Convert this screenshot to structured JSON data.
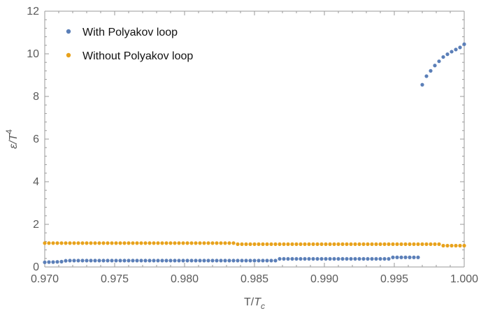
{
  "chart_data": {
    "type": "scatter",
    "title": "",
    "xlabel": "T/T_c",
    "ylabel": "ε/T^4",
    "xlim": [
      0.97,
      1.0
    ],
    "ylim": [
      0,
      12
    ],
    "xticks": [
      0.97,
      0.975,
      0.98,
      0.985,
      0.99,
      0.995,
      1.0
    ],
    "xtick_labels": [
      "0.970",
      "0.975",
      "0.980",
      "0.985",
      "0.990",
      "0.995",
      "1.000"
    ],
    "yticks": [
      0,
      2,
      4,
      6,
      8,
      10,
      12
    ],
    "ytick_labels": [
      "0",
      "2",
      "4",
      "6",
      "8",
      "10",
      "12"
    ],
    "legend_position": "top-left",
    "grid": false,
    "series": [
      {
        "name": "With Polyakov loop",
        "color": "#5b7fb8",
        "x": [
          0.97,
          0.9703,
          0.9706,
          0.9709,
          0.9712,
          0.9715,
          0.9718,
          0.9721,
          0.9724,
          0.9727,
          0.973,
          0.9733,
          0.9736,
          0.9739,
          0.9742,
          0.9745,
          0.9748,
          0.9751,
          0.9754,
          0.9757,
          0.976,
          0.9763,
          0.9766,
          0.9769,
          0.9772,
          0.9775,
          0.9778,
          0.9781,
          0.9784,
          0.9787,
          0.979,
          0.9793,
          0.9796,
          0.9799,
          0.9802,
          0.9805,
          0.9808,
          0.9811,
          0.9814,
          0.9817,
          0.982,
          0.9823,
          0.9826,
          0.9829,
          0.9832,
          0.9835,
          0.9838,
          0.9841,
          0.9844,
          0.9847,
          0.985,
          0.9853,
          0.9856,
          0.9859,
          0.9862,
          0.9865,
          0.9868,
          0.9871,
          0.9874,
          0.9877,
          0.988,
          0.9883,
          0.9886,
          0.9889,
          0.9892,
          0.9895,
          0.9898,
          0.9901,
          0.9904,
          0.9907,
          0.991,
          0.9913,
          0.9916,
          0.9919,
          0.9922,
          0.9925,
          0.9928,
          0.9931,
          0.9934,
          0.9937,
          0.994,
          0.9943,
          0.9946,
          0.9949,
          0.9952,
          0.9955,
          0.9958,
          0.9961,
          0.9964,
          0.9967,
          0.997,
          0.9973,
          0.9976,
          0.9979,
          0.9982,
          0.9985,
          0.9988,
          0.9991,
          0.9994,
          0.9997,
          1.0
        ],
        "y": [
          0.22,
          0.23,
          0.23,
          0.24,
          0.25,
          0.29,
          0.3,
          0.3,
          0.3,
          0.3,
          0.3,
          0.3,
          0.3,
          0.3,
          0.3,
          0.3,
          0.3,
          0.3,
          0.3,
          0.3,
          0.3,
          0.3,
          0.3,
          0.3,
          0.3,
          0.3,
          0.3,
          0.3,
          0.3,
          0.3,
          0.3,
          0.3,
          0.3,
          0.3,
          0.3,
          0.3,
          0.3,
          0.3,
          0.3,
          0.3,
          0.3,
          0.3,
          0.3,
          0.3,
          0.3,
          0.3,
          0.3,
          0.3,
          0.3,
          0.3,
          0.3,
          0.3,
          0.3,
          0.3,
          0.3,
          0.3,
          0.38,
          0.38,
          0.38,
          0.38,
          0.38,
          0.38,
          0.38,
          0.38,
          0.38,
          0.38,
          0.38,
          0.38,
          0.38,
          0.38,
          0.38,
          0.38,
          0.38,
          0.38,
          0.38,
          0.38,
          0.38,
          0.38,
          0.38,
          0.38,
          0.38,
          0.38,
          0.38,
          0.45,
          0.45,
          0.45,
          0.45,
          0.45,
          0.45,
          0.45,
          8.55,
          8.95,
          9.2,
          9.45,
          9.65,
          9.85,
          9.98,
          10.1,
          10.2,
          10.3,
          10.45
        ]
      },
      {
        "name": "Without Polyakov loop",
        "color": "#e8a21c",
        "x": [
          0.97,
          0.9703,
          0.9706,
          0.9709,
          0.9712,
          0.9715,
          0.9718,
          0.9721,
          0.9724,
          0.9727,
          0.973,
          0.9733,
          0.9736,
          0.9739,
          0.9742,
          0.9745,
          0.9748,
          0.9751,
          0.9754,
          0.9757,
          0.976,
          0.9763,
          0.9766,
          0.9769,
          0.9772,
          0.9775,
          0.9778,
          0.9781,
          0.9784,
          0.9787,
          0.979,
          0.9793,
          0.9796,
          0.9799,
          0.9802,
          0.9805,
          0.9808,
          0.9811,
          0.9814,
          0.9817,
          0.982,
          0.9823,
          0.9826,
          0.9829,
          0.9832,
          0.9835,
          0.9838,
          0.9841,
          0.9844,
          0.9847,
          0.985,
          0.9853,
          0.9856,
          0.9859,
          0.9862,
          0.9865,
          0.9868,
          0.9871,
          0.9874,
          0.9877,
          0.988,
          0.9883,
          0.9886,
          0.9889,
          0.9892,
          0.9895,
          0.9898,
          0.9901,
          0.9904,
          0.9907,
          0.991,
          0.9913,
          0.9916,
          0.9919,
          0.9922,
          0.9925,
          0.9928,
          0.9931,
          0.9934,
          0.9937,
          0.994,
          0.9943,
          0.9946,
          0.9949,
          0.9952,
          0.9955,
          0.9958,
          0.9961,
          0.9964,
          0.9967,
          0.997,
          0.9973,
          0.9976,
          0.9979,
          0.9982,
          0.9985,
          0.9988,
          0.9991,
          0.9994,
          0.9997,
          1.0
        ],
        "y": [
          1.12,
          1.12,
          1.12,
          1.12,
          1.12,
          1.12,
          1.12,
          1.12,
          1.12,
          1.12,
          1.12,
          1.12,
          1.12,
          1.12,
          1.12,
          1.12,
          1.12,
          1.12,
          1.12,
          1.12,
          1.12,
          1.12,
          1.12,
          1.12,
          1.12,
          1.12,
          1.12,
          1.12,
          1.12,
          1.12,
          1.12,
          1.12,
          1.12,
          1.12,
          1.12,
          1.12,
          1.12,
          1.12,
          1.12,
          1.12,
          1.12,
          1.12,
          1.12,
          1.12,
          1.12,
          1.12,
          1.07,
          1.07,
          1.07,
          1.07,
          1.07,
          1.07,
          1.07,
          1.07,
          1.07,
          1.07,
          1.07,
          1.07,
          1.07,
          1.07,
          1.07,
          1.07,
          1.07,
          1.07,
          1.07,
          1.07,
          1.07,
          1.07,
          1.07,
          1.07,
          1.07,
          1.07,
          1.07,
          1.07,
          1.07,
          1.07,
          1.07,
          1.07,
          1.07,
          1.07,
          1.07,
          1.07,
          1.07,
          1.07,
          1.07,
          1.07,
          1.07,
          1.07,
          1.07,
          1.07,
          1.07,
          1.07,
          1.07,
          1.07,
          1.07,
          1.0,
          1.0,
          1.0,
          1.0,
          1.0,
          1.0
        ]
      }
    ]
  }
}
